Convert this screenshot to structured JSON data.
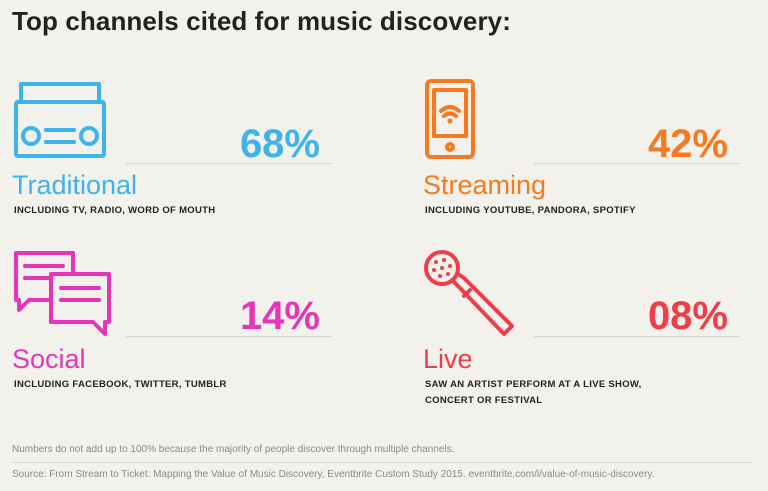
{
  "title": "Top channels cited for music discovery:",
  "colors": {
    "traditional": "#3eb3ec",
    "streaming": "#f47b20",
    "social": "#e535b8",
    "live": "#ef3e48"
  },
  "chart_data": {
    "type": "table",
    "title": "Top channels cited for music discovery:",
    "categories": [
      "Traditional",
      "Streaming",
      "Social",
      "Live"
    ],
    "values": [
      68,
      42,
      14,
      8
    ],
    "items": [
      {
        "icon": "boombox-icon",
        "label": "Traditional",
        "percent": "68%",
        "detail": "INCLUDING TV, RADIO, WORD OF MOUTH"
      },
      {
        "icon": "smartphone-icon",
        "label": "Streaming",
        "percent": "42%",
        "detail": "INCLUDING YOUTUBE, PANDORA, SPOTIFY"
      },
      {
        "icon": "speech-bubbles-icon",
        "label": "Social",
        "percent": "14%",
        "detail": "INCLUDING FACEBOOK, TWITTER, TUMBLR"
      },
      {
        "icon": "microphone-icon",
        "label": "Live",
        "percent": "08%",
        "detail_line1": "SAW AN ARTIST PERFORM AT A LIVE SHOW,",
        "detail_line2": "CONCERT OR FESTIVAL"
      }
    ]
  },
  "footnote": "Numbers do not add up to 100% because the majority of people discover through multiple channels.",
  "source": "Source: From Stream to Ticket: Mapping the Value of Music Discovery, Eventbrite Custom Study 2015. eventbrite.com/l/value-of-music-discovery."
}
